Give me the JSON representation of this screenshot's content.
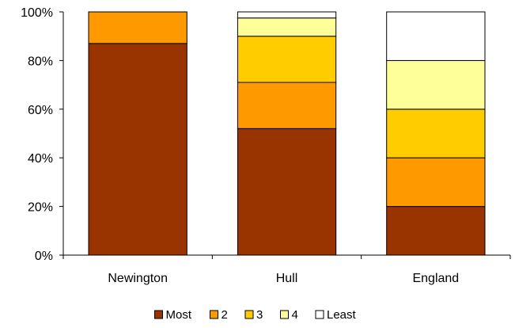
{
  "chart_data": {
    "type": "bar",
    "stacked": true,
    "percent": true,
    "categories": [
      "Newington",
      "Hull",
      "England"
    ],
    "series": [
      {
        "name": "Most",
        "color": "#993300",
        "values": [
          87,
          52,
          20
        ]
      },
      {
        "name": "2",
        "color": "#FF9900",
        "values": [
          13,
          19,
          20
        ]
      },
      {
        "name": "3",
        "color": "#FFCC00",
        "values": [
          0,
          19,
          20
        ]
      },
      {
        "name": "4",
        "color": "#FFFF99",
        "values": [
          0,
          7.5,
          20
        ]
      },
      {
        "name": "Least",
        "color": "#FFFFFF",
        "values": [
          0,
          2.5,
          20
        ]
      }
    ],
    "ylim": [
      0,
      100
    ],
    "yticks": [
      "0%",
      "20%",
      "40%",
      "60%",
      "80%",
      "100%"
    ],
    "grid": false,
    "legend": "bottom",
    "title": "",
    "xlabel": "",
    "ylabel": ""
  }
}
